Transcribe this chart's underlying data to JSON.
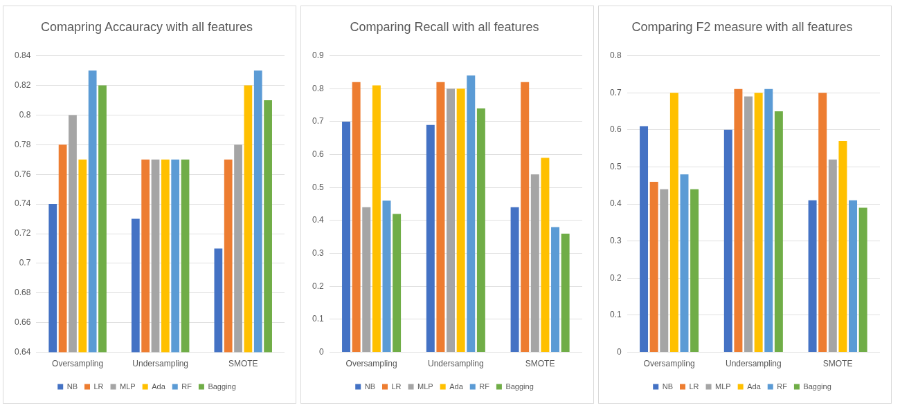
{
  "chart_data": [
    {
      "type": "bar",
      "title": "Comapring Accauracy with all features",
      "categories": [
        "Oversampling",
        "Undersampling",
        "SMOTE"
      ],
      "series": [
        {
          "name": "NB",
          "color": "#4472c4",
          "values": [
            0.74,
            0.73,
            0.71
          ]
        },
        {
          "name": "LR",
          "color": "#ed7d31",
          "values": [
            0.78,
            0.77,
            0.77
          ]
        },
        {
          "name": "MLP",
          "color": "#a5a5a5",
          "values": [
            0.8,
            0.77,
            0.78
          ]
        },
        {
          "name": "Ada",
          "color": "#ffc000",
          "values": [
            0.77,
            0.77,
            0.82
          ]
        },
        {
          "name": "RF",
          "color": "#5b9bd5",
          "values": [
            0.83,
            0.77,
            0.83
          ]
        },
        {
          "name": "Bagging",
          "color": "#70ad47",
          "values": [
            0.82,
            0.77,
            0.81
          ]
        }
      ],
      "ylim": [
        0.64,
        0.84
      ],
      "yticks": [
        0.64,
        0.66,
        0.68,
        0.7,
        0.72,
        0.74,
        0.76,
        0.78,
        0.8,
        0.82,
        0.84
      ],
      "grid": "y",
      "legend": "bottom"
    },
    {
      "type": "bar",
      "title": "Comparing Recall with all features",
      "categories": [
        "Oversampling",
        "Undersampling",
        "SMOTE"
      ],
      "series": [
        {
          "name": "NB",
          "color": "#4472c4",
          "values": [
            0.7,
            0.69,
            0.44
          ]
        },
        {
          "name": "LR",
          "color": "#ed7d31",
          "values": [
            0.82,
            0.82,
            0.82
          ]
        },
        {
          "name": "MLP",
          "color": "#a5a5a5",
          "values": [
            0.44,
            0.8,
            0.54
          ]
        },
        {
          "name": "Ada",
          "color": "#ffc000",
          "values": [
            0.81,
            0.8,
            0.59
          ]
        },
        {
          "name": "RF",
          "color": "#5b9bd5",
          "values": [
            0.46,
            0.84,
            0.38
          ]
        },
        {
          "name": "Bagging",
          "color": "#70ad47",
          "values": [
            0.42,
            0.74,
            0.36
          ]
        }
      ],
      "ylim": [
        0,
        0.9
      ],
      "yticks": [
        0,
        0.1,
        0.2,
        0.3,
        0.4,
        0.5,
        0.6,
        0.7,
        0.8,
        0.9
      ],
      "grid": "y",
      "legend": "bottom"
    },
    {
      "type": "bar",
      "title": "Comparing F2 measure with all features",
      "categories": [
        "Oversampling",
        "Undersampling",
        "SMOTE"
      ],
      "series": [
        {
          "name": "NB",
          "color": "#4472c4",
          "values": [
            0.61,
            0.6,
            0.41
          ]
        },
        {
          "name": "LR",
          "color": "#ed7d31",
          "values": [
            0.46,
            0.71,
            0.7
          ]
        },
        {
          "name": "MLP",
          "color": "#a5a5a5",
          "values": [
            0.44,
            0.69,
            0.52
          ]
        },
        {
          "name": "Ada",
          "color": "#ffc000",
          "values": [
            0.7,
            0.7,
            0.57
          ]
        },
        {
          "name": "RF",
          "color": "#5b9bd5",
          "values": [
            0.48,
            0.71,
            0.41
          ]
        },
        {
          "name": "Bagging",
          "color": "#70ad47",
          "values": [
            0.44,
            0.65,
            0.39
          ]
        }
      ],
      "ylim": [
        0,
        0.8
      ],
      "yticks": [
        0,
        0.1,
        0.2,
        0.3,
        0.4,
        0.5,
        0.6,
        0.7,
        0.8
      ],
      "grid": "y",
      "legend": "bottom"
    }
  ]
}
